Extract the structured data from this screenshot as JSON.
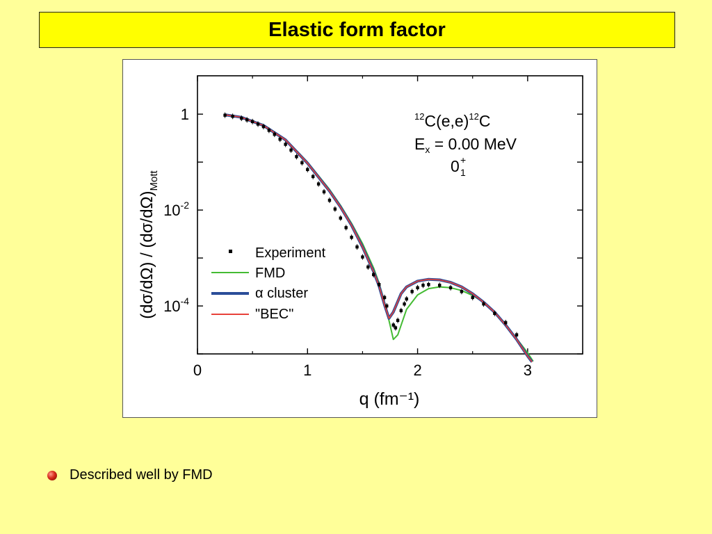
{
  "slide": {
    "title": "Elastic form factor",
    "bullets": [
      "Described well by FMD"
    ]
  },
  "colors": {
    "background": "#ffff99",
    "title_box": "#ffff00",
    "bullet": "#cc2211",
    "fmd": "#44bb33",
    "alpha_cluster": "#2b4d99",
    "bec": "#e8413a",
    "experiment": "#000000"
  },
  "chart_data": {
    "type": "scatter",
    "log_y": true,
    "xlabel": "q (fm⁻¹)",
    "ylabel": "(dσ/dΩ) / (dσ/dΩ)Mott",
    "xlim": [
      0,
      3.5
    ],
    "ylim_exponent": [
      -5.0,
      0.8
    ],
    "x_ticks": [
      "0",
      "1",
      "2",
      "3"
    ],
    "x_tick_values": [
      0,
      1,
      2,
      3
    ],
    "y_ticks": [
      {
        "value_exp": 0,
        "base": "1",
        "exp": ""
      },
      {
        "value_exp": -2,
        "base": "10",
        "exp": "-2"
      },
      {
        "value_exp": -4,
        "base": "10",
        "exp": "-4"
      }
    ],
    "annotation": {
      "reaction": {
        "pre_sup": "12",
        "a": "C(e,e)",
        "mid_sup": "12",
        "b": "C"
      },
      "energy": {
        "sym": "E",
        "sub": "x",
        "rest": " = 0.00 MeV"
      },
      "state": {
        "base": "0",
        "sup": "+",
        "sub": "1"
      }
    },
    "legend": {
      "position": "center-left",
      "entries": [
        {
          "label": "Experiment",
          "marker": "square"
        },
        {
          "label": "FMD",
          "marker": "line"
        },
        {
          "label": "α cluster",
          "marker": "thick-line"
        },
        {
          "label": "\"BEC\"",
          "marker": "line"
        }
      ]
    },
    "series": [
      {
        "name": "Experiment",
        "kind": "points",
        "x": [
          0.25,
          0.32,
          0.4,
          0.45,
          0.5,
          0.55,
          0.6,
          0.65,
          0.7,
          0.75,
          0.8,
          0.85,
          0.9,
          0.95,
          1.0,
          1.05,
          1.1,
          1.15,
          1.2,
          1.25,
          1.3,
          1.35,
          1.4,
          1.45,
          1.5,
          1.55,
          1.6,
          1.65,
          1.7,
          1.72,
          1.78,
          1.8,
          1.82,
          1.85,
          1.88,
          1.9,
          1.95,
          2.0,
          2.05,
          2.1,
          2.2,
          2.3,
          2.4,
          2.5,
          2.6,
          2.7,
          2.8,
          2.9
        ],
        "y": [
          0.95,
          0.9,
          0.82,
          0.76,
          0.7,
          0.62,
          0.55,
          0.46,
          0.38,
          0.3,
          0.235,
          0.178,
          0.13,
          0.097,
          0.07,
          0.05,
          0.035,
          0.024,
          0.016,
          0.0105,
          0.0068,
          0.0043,
          0.0027,
          0.0017,
          0.00105,
          0.00065,
          0.00045,
          0.00028,
          0.00015,
          0.0001,
          4e-05,
          3.5e-05,
          5e-05,
          8e-05,
          0.00011,
          0.00014,
          0.0002,
          0.00024,
          0.00027,
          0.00028,
          0.00027,
          0.00024,
          0.0002,
          0.00015,
          0.00011,
          7e-05,
          4.5e-05,
          2.5e-05
        ]
      },
      {
        "name": "FMD",
        "kind": "line",
        "x": [
          0.25,
          0.4,
          0.6,
          0.8,
          1.0,
          1.2,
          1.3,
          1.4,
          1.5,
          1.6,
          1.65,
          1.7,
          1.75,
          1.78,
          1.82,
          1.9,
          2.0,
          2.1,
          2.2,
          2.3,
          2.4,
          2.5,
          2.6,
          2.7,
          2.8,
          2.9,
          3.0,
          3.05
        ],
        "y": [
          0.97,
          0.86,
          0.6,
          0.3,
          0.1,
          0.027,
          0.0125,
          0.0053,
          0.002,
          0.00062,
          0.0003,
          0.00012,
          4e-05,
          2e-05,
          2.5e-05,
          8.5e-05,
          0.00017,
          0.00023,
          0.00025,
          0.00024,
          0.00021,
          0.000165,
          0.00012,
          7.5e-05,
          4.2e-05,
          2.1e-05,
          1.05e-05,
          7e-06
        ]
      },
      {
        "name": "α cluster",
        "kind": "line",
        "x": [
          0.25,
          0.4,
          0.6,
          0.8,
          1.0,
          1.2,
          1.3,
          1.4,
          1.5,
          1.6,
          1.65,
          1.7,
          1.74,
          1.78,
          1.85,
          1.9,
          2.0,
          2.1,
          2.2,
          2.3,
          2.4,
          2.5,
          2.6,
          2.7,
          2.8,
          2.9,
          3.0,
          3.04
        ],
        "y": [
          0.97,
          0.86,
          0.58,
          0.29,
          0.095,
          0.025,
          0.0115,
          0.0048,
          0.0017,
          0.00052,
          0.00026,
          0.000105,
          5.5e-05,
          7.5e-05,
          0.00018,
          0.00025,
          0.00033,
          0.00036,
          0.00035,
          0.00031,
          0.00025,
          0.00018,
          0.00012,
          7.4e-05,
          4e-05,
          2e-05,
          9e-06,
          6.8e-06
        ]
      },
      {
        "name": "\"BEC\"",
        "kind": "line",
        "x": [
          0.25,
          0.4,
          0.6,
          0.8,
          1.0,
          1.2,
          1.3,
          1.4,
          1.5,
          1.6,
          1.65,
          1.7,
          1.74,
          1.78,
          1.85,
          1.9,
          2.0,
          2.1,
          2.2,
          2.3,
          2.4,
          2.5,
          2.6,
          2.7,
          2.8,
          2.9,
          3.0,
          3.04
        ],
        "y": [
          0.97,
          0.86,
          0.58,
          0.29,
          0.095,
          0.025,
          0.0115,
          0.0048,
          0.0017,
          0.00052,
          0.00026,
          0.000105,
          5.5e-05,
          7.5e-05,
          0.00018,
          0.00025,
          0.00033,
          0.00036,
          0.00035,
          0.00031,
          0.00025,
          0.00018,
          0.00012,
          7.4e-05,
          4e-05,
          2e-05,
          9e-06,
          6.8e-06
        ]
      }
    ]
  }
}
